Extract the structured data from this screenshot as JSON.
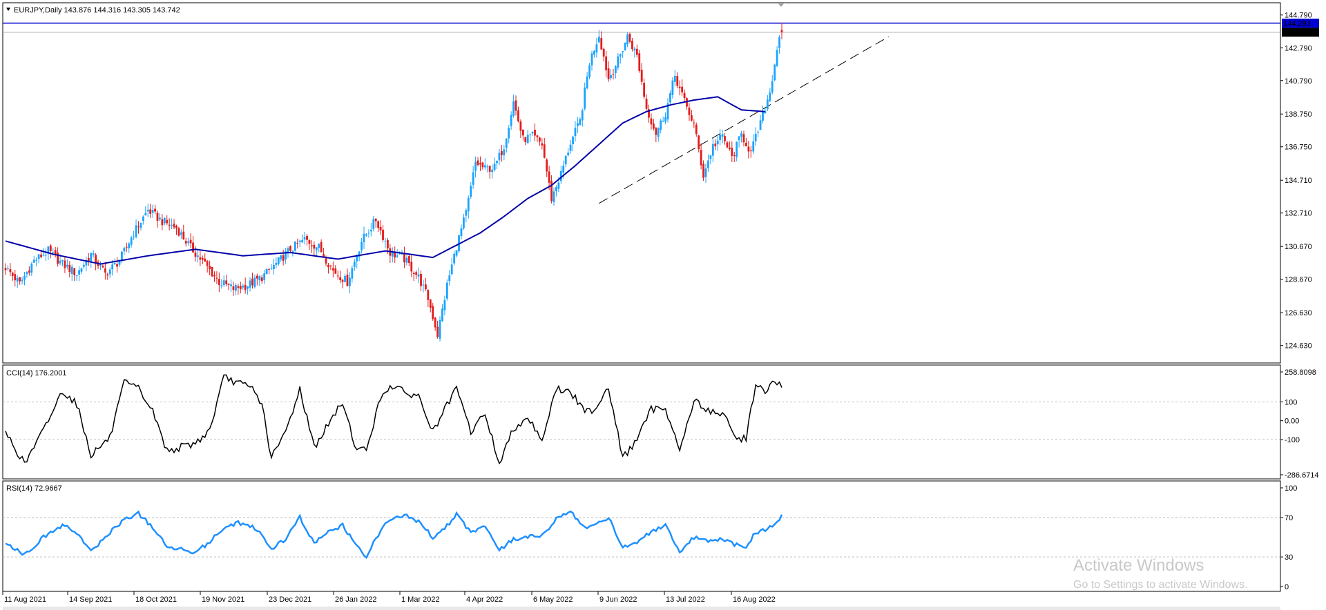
{
  "colors": {
    "bull_candle": "#1aa3ff",
    "bear_candle": "#e41c1c",
    "ma_line": "#0000a8",
    "resistance_line": "#0000d0",
    "price_tag_bg": "#0000d0",
    "last_tag_bg": "#000000",
    "cci_line": "#000000",
    "rsi_line": "#1e90ff",
    "grid_dotted": "#bfbfbf",
    "frame": "#000000"
  },
  "chart_data": [
    {
      "type": "candlestick",
      "title": "EURJPY,Daily  143.876 144.316 143.305 143.742",
      "symbol": "EURJPY",
      "timeframe": "Daily",
      "last_bar": {
        "open": 143.876,
        "high": 144.316,
        "low": 143.305,
        "close": 143.742
      },
      "ylim": [
        123.9,
        145.2
      ],
      "y_ticks": [
        "144.790",
        "142.790",
        "140.790",
        "138.750",
        "136.750",
        "134.710",
        "132.710",
        "130.670",
        "128.670",
        "126.630",
        "124.630"
      ],
      "x_ticks": [
        "11 Aug 2021",
        "14 Sep 2021",
        "18 Oct 2021",
        "19 Nov 2021",
        "23 Dec 2021",
        "26 Jan 2022",
        "1 Mar 2022",
        "4 Apr 2022",
        "6 May 2022",
        "9 Jun 2022",
        "13 Jul 2022",
        "16 Aug 2022"
      ],
      "price_tags": {
        "resistance": "144.293",
        "last": "143.742"
      },
      "resistance_level": 144.293,
      "trendline": {
        "from": [
          "13 Jul 2022",
          133.3
        ],
        "to": [
          "30 Aug 2022",
          138.8
        ],
        "style": "dashed"
      },
      "close_path": [
        [
          0,
          129.4
        ],
        [
          6,
          128.4
        ],
        [
          12,
          129.8
        ],
        [
          18,
          130.4
        ],
        [
          24,
          129.6
        ],
        [
          30,
          129.0
        ],
        [
          36,
          130.2
        ],
        [
          42,
          129.0
        ],
        [
          48,
          129.8
        ],
        [
          54,
          131.5
        ],
        [
          60,
          132.9
        ],
        [
          66,
          132.2
        ],
        [
          72,
          131.8
        ],
        [
          78,
          130.6
        ],
        [
          84,
          129.6
        ],
        [
          90,
          128.5
        ],
        [
          96,
          128.1
        ],
        [
          102,
          128.3
        ],
        [
          108,
          128.8
        ],
        [
          114,
          129.6
        ],
        [
          120,
          130.5
        ],
        [
          126,
          131.1
        ],
        [
          132,
          130.6
        ],
        [
          138,
          129.2
        ],
        [
          144,
          128.5
        ],
        [
          150,
          131.0
        ],
        [
          156,
          132.3
        ],
        [
          162,
          130.3
        ],
        [
          168,
          129.9
        ],
        [
          174,
          128.8
        ],
        [
          178,
          127.5
        ],
        [
          182,
          125.3
        ],
        [
          186,
          128.3
        ],
        [
          190,
          130.7
        ],
        [
          194,
          132.7
        ],
        [
          198,
          135.8
        ],
        [
          202,
          135.4
        ],
        [
          206,
          135.5
        ],
        [
          210,
          136.8
        ],
        [
          214,
          139.5
        ],
        [
          218,
          137.2
        ],
        [
          222,
          137.4
        ],
        [
          226,
          136.9
        ],
        [
          230,
          133.6
        ],
        [
          234,
          135.1
        ],
        [
          238,
          137.0
        ],
        [
          242,
          138.3
        ],
        [
          246,
          141.9
        ],
        [
          250,
          143.6
        ],
        [
          254,
          140.9
        ],
        [
          258,
          142.0
        ],
        [
          262,
          143.5
        ],
        [
          266,
          142.3
        ],
        [
          270,
          139.1
        ],
        [
          274,
          137.6
        ],
        [
          278,
          138.8
        ],
        [
          282,
          141.1
        ],
        [
          286,
          139.5
        ],
        [
          290,
          138.1
        ],
        [
          294,
          135.0
        ],
        [
          298,
          136.8
        ],
        [
          302,
          137.4
        ],
        [
          306,
          136.1
        ],
        [
          310,
          137.5
        ],
        [
          314,
          136.4
        ],
        [
          318,
          138.2
        ],
        [
          322,
          140.1
        ],
        [
          326,
          143.6
        ],
        [
          327,
          143.742
        ]
      ],
      "moving_average": [
        [
          0,
          131.0
        ],
        [
          20,
          130.2
        ],
        [
          40,
          129.6
        ],
        [
          60,
          130.1
        ],
        [
          80,
          130.5
        ],
        [
          100,
          130.1
        ],
        [
          120,
          130.3
        ],
        [
          140,
          129.9
        ],
        [
          160,
          130.4
        ],
        [
          180,
          130.0
        ],
        [
          200,
          131.5
        ],
        [
          210,
          132.5
        ],
        [
          220,
          133.6
        ],
        [
          230,
          134.4
        ],
        [
          240,
          135.6
        ],
        [
          250,
          136.9
        ],
        [
          260,
          138.2
        ],
        [
          270,
          138.9
        ],
        [
          280,
          139.3
        ],
        [
          290,
          139.6
        ],
        [
          300,
          139.8
        ],
        [
          310,
          139.0
        ],
        [
          320,
          138.9
        ]
      ]
    },
    {
      "type": "line",
      "title": "CCI(14) 176.2001",
      "indicator": "CCI",
      "period": 14,
      "current": 176.2001,
      "ylim": [
        -286.6714,
        258.8098
      ],
      "y_ticks": [
        "258.8098",
        "100",
        "0.00",
        "-100",
        "-286.6714"
      ],
      "levels": [
        100,
        -100
      ],
      "x": [
        0,
        8,
        16,
        24,
        30,
        36,
        44,
        50,
        56,
        62,
        68,
        74,
        80,
        86,
        92,
        98,
        104,
        108,
        112,
        118,
        124,
        130,
        136,
        142,
        148,
        152,
        158,
        162,
        168,
        174,
        180,
        186,
        190,
        196,
        202,
        208,
        214,
        220,
        226,
        232,
        238,
        244,
        248,
        254,
        260,
        266,
        272,
        278,
        284,
        290,
        296,
        302,
        308,
        312,
        316,
        320,
        324,
        327
      ],
      "values": [
        -60,
        -230,
        -50,
        160,
        90,
        -180,
        -90,
        200,
        170,
        50,
        -160,
        -140,
        -120,
        -50,
        230,
        200,
        170,
        90,
        -200,
        -60,
        170,
        -140,
        -20,
        100,
        -160,
        -150,
        120,
        190,
        150,
        130,
        -60,
        80,
        170,
        -60,
        40,
        -230,
        -40,
        20,
        -100,
        170,
        150,
        50,
        60,
        180,
        -200,
        -100,
        60,
        70,
        -160,
        110,
        50,
        40,
        -100,
        -90,
        200,
        150,
        210,
        176.2
      ]
    },
    {
      "type": "line",
      "title": "RSI(14) 72.9667",
      "indicator": "RSI",
      "period": 14,
      "current": 72.9667,
      "ylim": [
        0,
        100
      ],
      "y_ticks": [
        "100",
        "70",
        "30",
        "0"
      ],
      "levels": [
        70,
        30
      ],
      "x": [
        0,
        8,
        16,
        24,
        30,
        36,
        44,
        50,
        56,
        62,
        68,
        74,
        80,
        86,
        92,
        98,
        104,
        108,
        112,
        118,
        124,
        130,
        136,
        142,
        148,
        152,
        158,
        162,
        168,
        174,
        180,
        186,
        190,
        196,
        202,
        208,
        214,
        220,
        226,
        232,
        238,
        244,
        248,
        254,
        260,
        266,
        272,
        278,
        284,
        290,
        296,
        302,
        308,
        312,
        316,
        320,
        324,
        327
      ],
      "values": [
        45,
        32,
        50,
        62,
        55,
        35,
        55,
        68,
        74,
        60,
        40,
        38,
        35,
        45,
        60,
        65,
        60,
        52,
        38,
        48,
        70,
        44,
        55,
        62,
        40,
        31,
        57,
        68,
        72,
        66,
        50,
        62,
        73,
        55,
        62,
        37,
        48,
        50,
        52,
        68,
        76,
        60,
        62,
        70,
        40,
        45,
        55,
        62,
        33,
        50,
        45,
        48,
        42,
        40,
        55,
        58,
        62,
        72.97
      ]
    }
  ],
  "watermark": {
    "line1": "Activate Windows",
    "line2": "Go to Settings to activate Windows."
  }
}
